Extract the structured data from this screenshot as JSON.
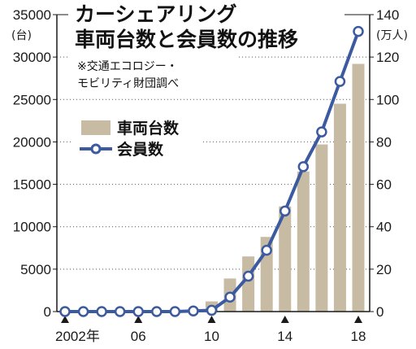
{
  "chart_data": {
    "type": "bar+line",
    "title": [
      "カーシェアリング",
      "車両台数と会員数の推移"
    ],
    "source": [
      "※交通エコロジー・",
      "モビリティ財団調べ"
    ],
    "x": [
      2002,
      2003,
      2004,
      2005,
      2006,
      2007,
      2008,
      2009,
      2010,
      2011,
      2012,
      2013,
      2014,
      2015,
      2016,
      2017,
      2018
    ],
    "x_tick_labels": [
      {
        "x": 2002,
        "label": "2002年"
      },
      {
        "x": 2006,
        "label": "06"
      },
      {
        "x": 2010,
        "label": "10"
      },
      {
        "x": 2014,
        "label": "14"
      },
      {
        "x": 2018,
        "label": "18"
      }
    ],
    "series": [
      {
        "name": "車両台数",
        "type": "bar",
        "axis": "left",
        "values": [
          0,
          0,
          0,
          0,
          0,
          0,
          0,
          0,
          1200,
          3900,
          6500,
          8800,
          12400,
          16500,
          19700,
          24500,
          29200
        ]
      },
      {
        "name": "会員数",
        "type": "line",
        "axis": "right",
        "values": [
          0,
          0,
          0,
          0,
          0,
          0,
          0,
          0.3,
          0.6,
          6.8,
          16.7,
          28.9,
          47.4,
          68.3,
          84.7,
          108.5,
          132.1
        ]
      }
    ],
    "y_left": {
      "unit": "(台)",
      "ylim": [
        0,
        35000
      ],
      "ticks": [
        "0",
        "5000",
        "10000",
        "15000",
        "20000",
        "25000",
        "30000",
        "35000"
      ]
    },
    "y_right": {
      "unit": "(万人)",
      "ylim": [
        0,
        140
      ],
      "ticks": [
        "0",
        "20",
        "40",
        "60",
        "80",
        "100",
        "120",
        "140"
      ]
    },
    "grid": "horizontal dotted",
    "legend_position": "upper-left",
    "colors": {
      "bar": "#c8bba4",
      "line": "#3c5a9f",
      "marker_fill": "#ffffff",
      "axis": "#1a1a1a",
      "grid": "#555555"
    }
  }
}
